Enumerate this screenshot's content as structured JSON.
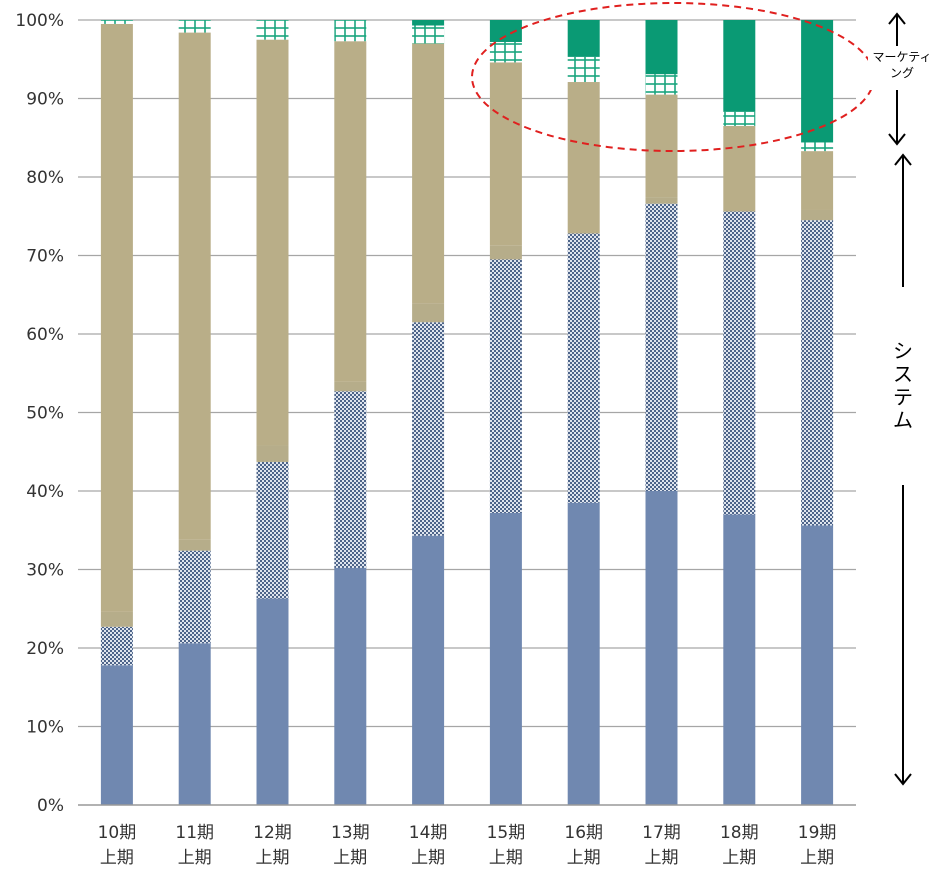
{
  "chart_data": {
    "type": "bar",
    "stacked": true,
    "categories": [
      [
        "10期",
        "上期"
      ],
      [
        "11期",
        "上期"
      ],
      [
        "12期",
        "上期"
      ],
      [
        "13期",
        "上期"
      ],
      [
        "14期",
        "上期"
      ],
      [
        "15期",
        "上期"
      ],
      [
        "16期",
        "上期"
      ],
      [
        "17期",
        "上期"
      ],
      [
        "18期",
        "上期"
      ],
      [
        "19期",
        "上期"
      ]
    ],
    "ylim": [
      0,
      100
    ],
    "yticks": [
      "0%",
      "10%",
      "20%",
      "30%",
      "40%",
      "50%",
      "60%",
      "70%",
      "80%",
      "90%",
      "100%"
    ],
    "grid": true,
    "legend": "none",
    "series": [
      {
        "values": [
          17.8,
          20.6,
          26.3,
          30.2,
          34.3,
          37.2,
          38.5,
          40.0,
          37.0,
          35.6
        ],
        "color": "#7088b0",
        "pattern": "solid"
      },
      {
        "values": [
          4.9,
          11.8,
          17.4,
          22.5,
          27.2,
          32.3,
          34.3,
          36.6,
          38.6,
          38.9
        ],
        "color": "#7088b0",
        "pattern": "checker"
      },
      {
        "values": [
          1.9,
          1.4,
          2.1,
          1.2,
          2.4,
          1.8,
          0.0,
          0.8,
          0.0,
          1.3
        ],
        "color": "#b6ad8a",
        "pattern": "solid"
      },
      {
        "values": [
          74.9,
          64.6,
          51.7,
          43.4,
          33.1,
          23.3,
          19.3,
          13.1,
          10.9,
          7.5
        ],
        "color": "#b9ae88",
        "pattern": "solid"
      },
      {
        "values": [
          0.5,
          1.6,
          2.5,
          2.7,
          2.3,
          2.6,
          3.2,
          2.6,
          1.8,
          1.1
        ],
        "color": "#ffffff",
        "pattern": "grid"
      },
      {
        "values": [
          0.0,
          0.0,
          0.0,
          0.0,
          0.7,
          2.8,
          4.7,
          6.9,
          11.7,
          15.6
        ],
        "color": "#0a9a74",
        "pattern": "solid"
      }
    ],
    "annotations": {
      "marketing": "マーケティング",
      "marketing_lines": [
        "マーケティ",
        "ング"
      ],
      "system": "システム",
      "system_chars": [
        "シ",
        "ス",
        "テ",
        "ム"
      ]
    }
  }
}
